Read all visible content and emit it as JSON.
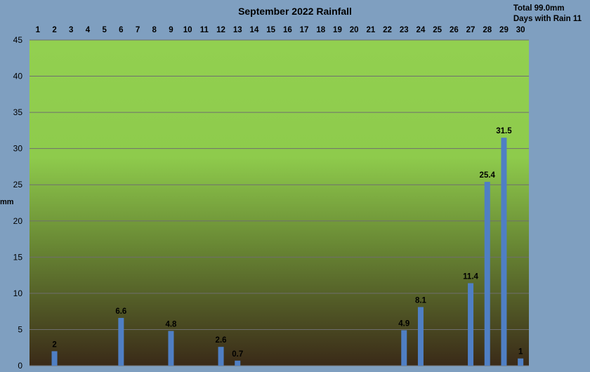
{
  "chart_data": {
    "type": "bar",
    "title": "September 2022 Rainfall",
    "summary": {
      "total": "Total 99.0mm",
      "days_with_rain": "Days with Rain 11"
    },
    "xlabel": "",
    "ylabel": "mm",
    "ylim": [
      0,
      45
    ],
    "yticks": [
      0,
      5,
      10,
      15,
      20,
      25,
      30,
      35,
      40,
      45
    ],
    "categories": [
      "1",
      "2",
      "3",
      "4",
      "5",
      "6",
      "7",
      "8",
      "9",
      "10",
      "11",
      "12",
      "13",
      "14",
      "15",
      "16",
      "17",
      "18",
      "19",
      "20",
      "21",
      "22",
      "23",
      "24",
      "25",
      "26",
      "27",
      "28",
      "29",
      "30"
    ],
    "values": [
      0,
      2,
      0,
      0,
      0,
      6.6,
      0,
      0,
      4.8,
      0,
      0,
      2.6,
      0.7,
      0,
      0,
      0,
      0,
      0,
      0,
      0,
      0,
      0,
      4.9,
      8.1,
      0,
      0,
      11.4,
      25.4,
      31.5,
      1
    ],
    "data_labels": [
      "",
      "2",
      "",
      "",
      "",
      "6.6",
      "",
      "",
      "4.8",
      "",
      "",
      "2.6",
      "0.7",
      "",
      "",
      "",
      "",
      "",
      "",
      "",
      "",
      "",
      "4.9",
      "8.1",
      "",
      "",
      "11.4",
      "25.4",
      "31.5",
      "1"
    ],
    "x_axis_position": "top",
    "grid": true,
    "legend": "none",
    "colors": {
      "bar": "#4f7fc4",
      "page_background": "#7f9fc0",
      "plot_top": "#92d050",
      "plot_bottom": "#3a2a18",
      "grid": "#6f6f6f"
    }
  }
}
